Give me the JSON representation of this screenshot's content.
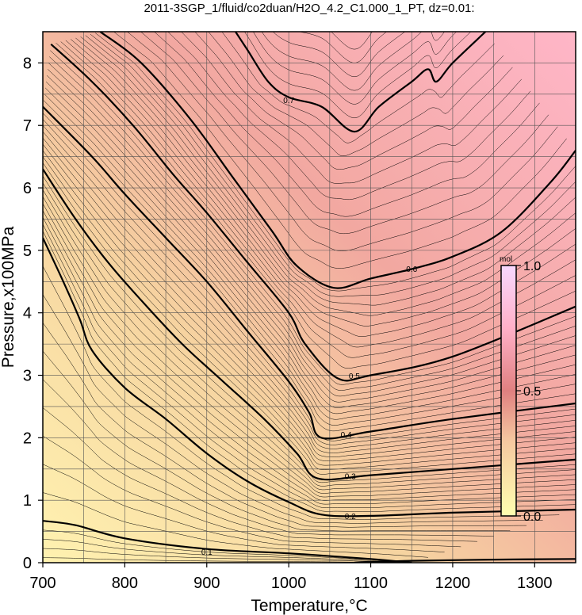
{
  "chart_data": {
    "type": "contour",
    "title": "2011-3SGP_1/fluid/co2duan/H2O_4.2_C1.000_1_PT, dz=0.01:",
    "xlabel": "Temperature,°C",
    "ylabel": "Pressure,x100MPa",
    "xlim": [
      700,
      1350
    ],
    "ylim": [
      0,
      8.5
    ],
    "xticks": [
      "700",
      "800",
      "900",
      "1000",
      "1100",
      "1200",
      "1300"
    ],
    "yticks": [
      "0",
      "1",
      "2",
      "3",
      "4",
      "5",
      "6",
      "7",
      "8"
    ],
    "grid": true,
    "contour_interval": 0.01,
    "labeled_levels": [
      {
        "level": 0.1,
        "label": "0.1",
        "points": [
          [
            700,
            0.67
          ],
          [
            740,
            0.6
          ],
          [
            800,
            0.39
          ],
          [
            900,
            0.22
          ],
          [
            1000,
            0.15
          ],
          [
            1100,
            0.06
          ],
          [
            1150,
            0.0
          ]
        ],
        "label_at": [
          900,
          0.17
        ]
      },
      {
        "level": 0.1,
        "label": "0.1",
        "points": [
          [
            1080,
            0.0
          ],
          [
            1150,
            0.03
          ],
          [
            1250,
            0.05
          ],
          [
            1350,
            0.06
          ]
        ],
        "label_at": [
          1115,
          -0.03
        ]
      },
      {
        "level": 0.2,
        "label": "0.2",
        "points": [
          [
            700,
            5.2
          ],
          [
            725,
            4.5
          ],
          [
            745,
            3.9
          ],
          [
            760,
            3.4
          ],
          [
            800,
            2.8
          ],
          [
            850,
            2.3
          ],
          [
            900,
            1.75
          ],
          [
            950,
            1.3
          ],
          [
            1000,
            0.97
          ],
          [
            1040,
            0.77
          ],
          [
            1100,
            0.75
          ],
          [
            1200,
            0.8
          ],
          [
            1350,
            0.85
          ]
        ],
        "label_at": [
          1075,
          0.74
        ]
      },
      {
        "level": 0.3,
        "label": "0.3",
        "points": [
          [
            700,
            6.3
          ],
          [
            740,
            5.5
          ],
          [
            780,
            4.8
          ],
          [
            820,
            4.2
          ],
          [
            870,
            3.5
          ],
          [
            920,
            2.9
          ],
          [
            970,
            2.3
          ],
          [
            1010,
            1.75
          ],
          [
            1035,
            1.35
          ],
          [
            1100,
            1.4
          ],
          [
            1200,
            1.5
          ],
          [
            1350,
            1.65
          ]
        ],
        "label_at": [
          1075,
          1.38
        ]
      },
      {
        "level": 0.4,
        "label": "0.4",
        "points": [
          [
            700,
            7.3
          ],
          [
            760,
            6.5
          ],
          [
            800,
            5.9
          ],
          [
            850,
            5.2
          ],
          [
            900,
            4.5
          ],
          [
            950,
            3.7
          ],
          [
            1000,
            2.9
          ],
          [
            1025,
            2.4
          ],
          [
            1040,
            2.0
          ],
          [
            1100,
            2.1
          ],
          [
            1200,
            2.3
          ],
          [
            1350,
            2.55
          ]
        ],
        "label_at": [
          1070,
          2.05
        ]
      },
      {
        "level": 0.5,
        "label": "0.5",
        "points": [
          [
            710,
            8.3
          ],
          [
            760,
            7.7
          ],
          [
            810,
            7.0
          ],
          [
            860,
            6.2
          ],
          [
            900,
            5.6
          ],
          [
            950,
            4.8
          ],
          [
            1000,
            4.0
          ],
          [
            1020,
            3.5
          ],
          [
            1060,
            2.95
          ],
          [
            1100,
            3.0
          ],
          [
            1200,
            3.3
          ],
          [
            1350,
            4.1
          ]
        ],
        "label_at": [
          1080,
          2.99
        ]
      },
      {
        "level": 0.6,
        "label": "0.6",
        "points": [
          [
            770,
            8.5
          ],
          [
            820,
            8.0
          ],
          [
            880,
            7.1
          ],
          [
            930,
            6.2
          ],
          [
            980,
            5.3
          ],
          [
            1010,
            4.75
          ],
          [
            1055,
            4.4
          ],
          [
            1100,
            4.55
          ],
          [
            1150,
            4.7
          ],
          [
            1200,
            4.9
          ],
          [
            1260,
            5.3
          ],
          [
            1320,
            6.1
          ],
          [
            1350,
            6.6
          ]
        ],
        "label_at": [
          1150,
          4.7
        ]
      },
      {
        "level": 0.7,
        "label": "0.7",
        "points": [
          [
            935,
            8.5
          ],
          [
            950,
            8.2
          ],
          [
            975,
            7.7
          ],
          [
            1000,
            7.45
          ],
          [
            1040,
            7.3
          ],
          [
            1080,
            6.9
          ],
          [
            1110,
            7.3
          ],
          [
            1150,
            7.7
          ],
          [
            1170,
            7.9
          ],
          [
            1180,
            7.7
          ],
          [
            1200,
            8.0
          ],
          [
            1240,
            8.5
          ]
        ],
        "label_at": [
          1000,
          7.4
        ]
      }
    ],
    "colorbar": {
      "label": "mol",
      "min": 0.0,
      "max": 1.0,
      "ticks": [
        "0.0",
        "0.5",
        "1.0"
      ],
      "colors": [
        "#ffffb0",
        "#f7c8a0",
        "#e08080",
        "#ffb0c8",
        "#f8d8ff"
      ]
    }
  }
}
